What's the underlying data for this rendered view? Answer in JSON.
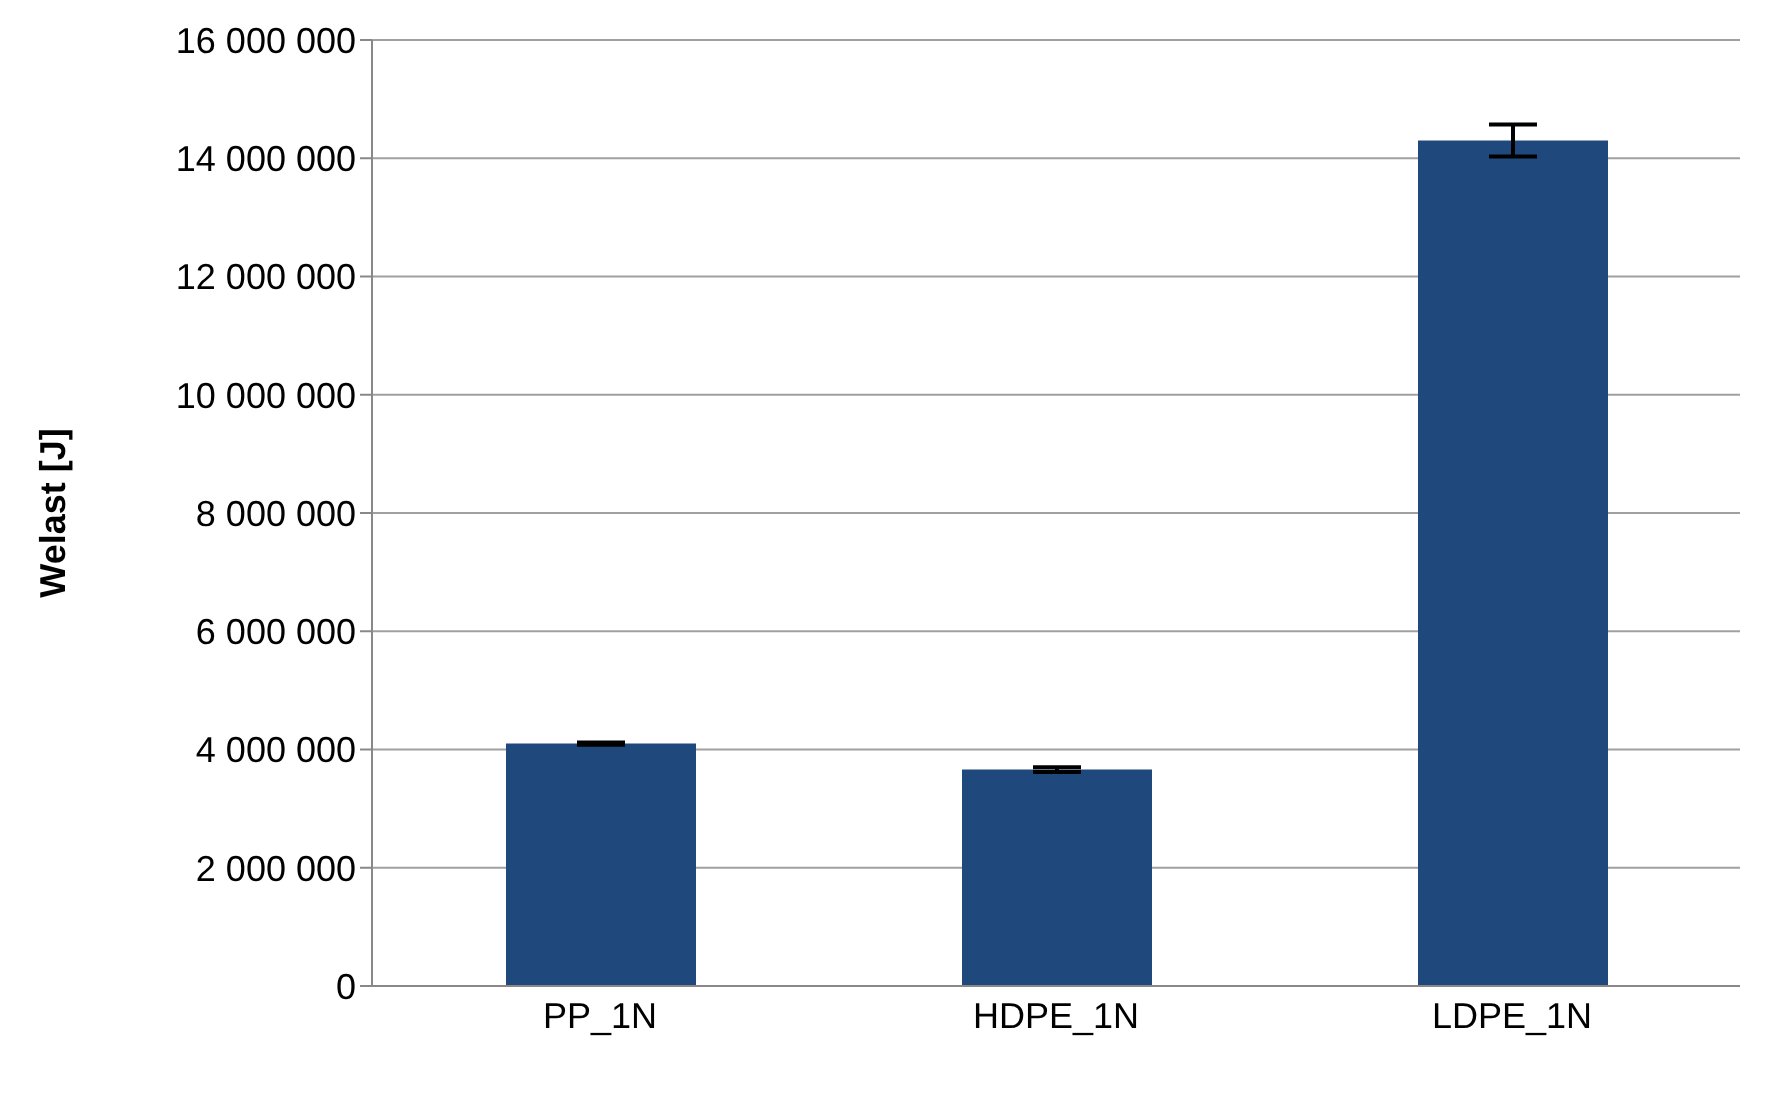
{
  "chart_data": {
    "type": "bar",
    "ylabel": "Welast [J]",
    "categories": [
      "PP_1N",
      "HDPE_1N",
      "LDPE_1N"
    ],
    "values": [
      4100000,
      3660000,
      14300000
    ],
    "errors": [
      20000,
      40000,
      270000
    ],
    "color": "#1f497d",
    "ylim": [
      0,
      16000000
    ],
    "yticks": [
      {
        "value": 0,
        "label": "0"
      },
      {
        "value": 2000000,
        "label": "2 000 000"
      },
      {
        "value": 4000000,
        "label": "4 000 000"
      },
      {
        "value": 6000000,
        "label": "6 000 000"
      },
      {
        "value": 8000000,
        "label": "8 000 000"
      },
      {
        "value": 10000000,
        "label": "10 000 000"
      },
      {
        "value": 12000000,
        "label": "12 000 000"
      },
      {
        "value": 14000000,
        "label": "14 000 000"
      },
      {
        "value": 16000000,
        "label": "16 000 000"
      }
    ],
    "grid": "y"
  }
}
